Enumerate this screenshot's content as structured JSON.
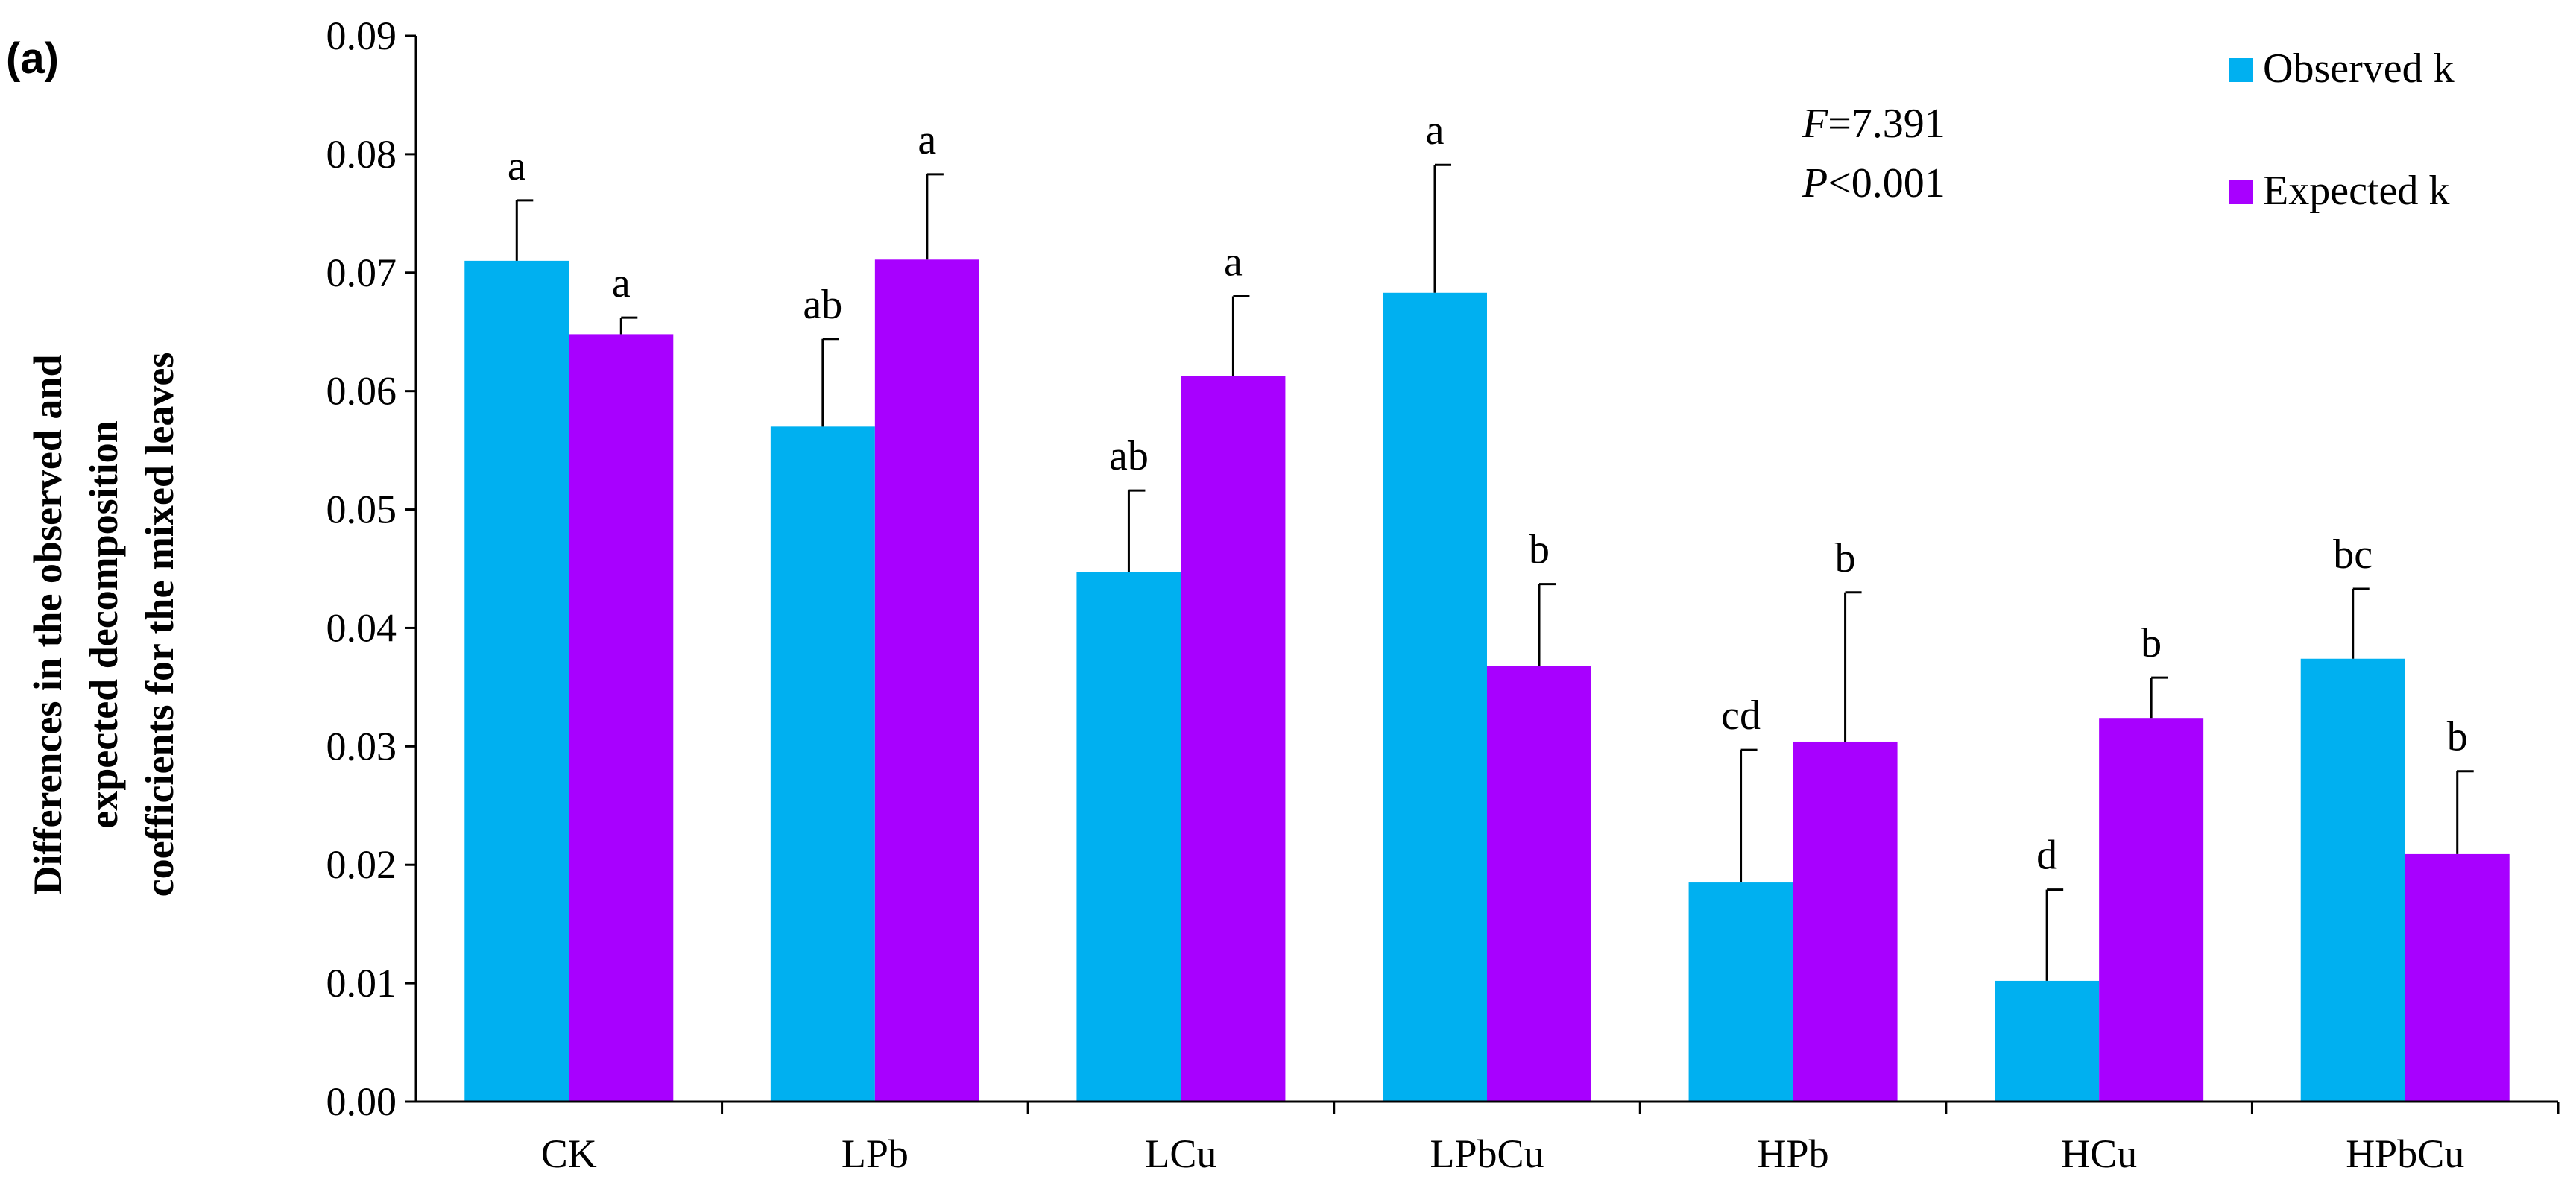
{
  "chart_data": {
    "type": "bar",
    "panel_label": "(a)",
    "title": "",
    "xlabel": "",
    "ylabel": [
      "Differences in the observed and",
      "expected decomposition",
      "coefficients for the mixed leaves"
    ],
    "ylim": [
      0,
      0.09
    ],
    "yticks": [
      "0.00",
      "0.01",
      "0.02",
      "0.03",
      "0.04",
      "0.05",
      "0.06",
      "0.07",
      "0.08",
      "0.09"
    ],
    "categories": [
      "CK",
      "LPb",
      "LCu",
      "LPbCu",
      "HPb",
      "HCu",
      "HPbCu"
    ],
    "series": [
      {
        "name": "Observed k",
        "color": "#00B0F0",
        "values": [
          0.071,
          0.057,
          0.0447,
          0.0683,
          0.0185,
          0.0102,
          0.0374
        ],
        "errors": [
          0.0051,
          0.0074,
          0.0069,
          0.0108,
          0.0112,
          0.0077,
          0.0059
        ],
        "letters": [
          "a",
          "ab",
          "ab",
          "a",
          "cd",
          "d",
          "bc"
        ]
      },
      {
        "name": "Expected k",
        "color": "#A800FF",
        "values": [
          0.0648,
          0.0711,
          0.0613,
          0.0368,
          0.0304,
          0.0324,
          0.0209
        ],
        "errors": [
          0.0014,
          0.0072,
          0.0067,
          0.0069,
          0.0126,
          0.0034,
          0.007
        ],
        "letters": [
          "a",
          "a",
          "a",
          "b",
          "b",
          "b",
          "b"
        ]
      }
    ],
    "stats": {
      "f_symbol": "F",
      "f_value": "=7.391",
      "p_symbol": "P",
      "p_value": "<0.001"
    },
    "legend": {
      "position": "top-right",
      "entries": [
        "Observed k",
        "Expected k"
      ]
    },
    "grid": false
  }
}
